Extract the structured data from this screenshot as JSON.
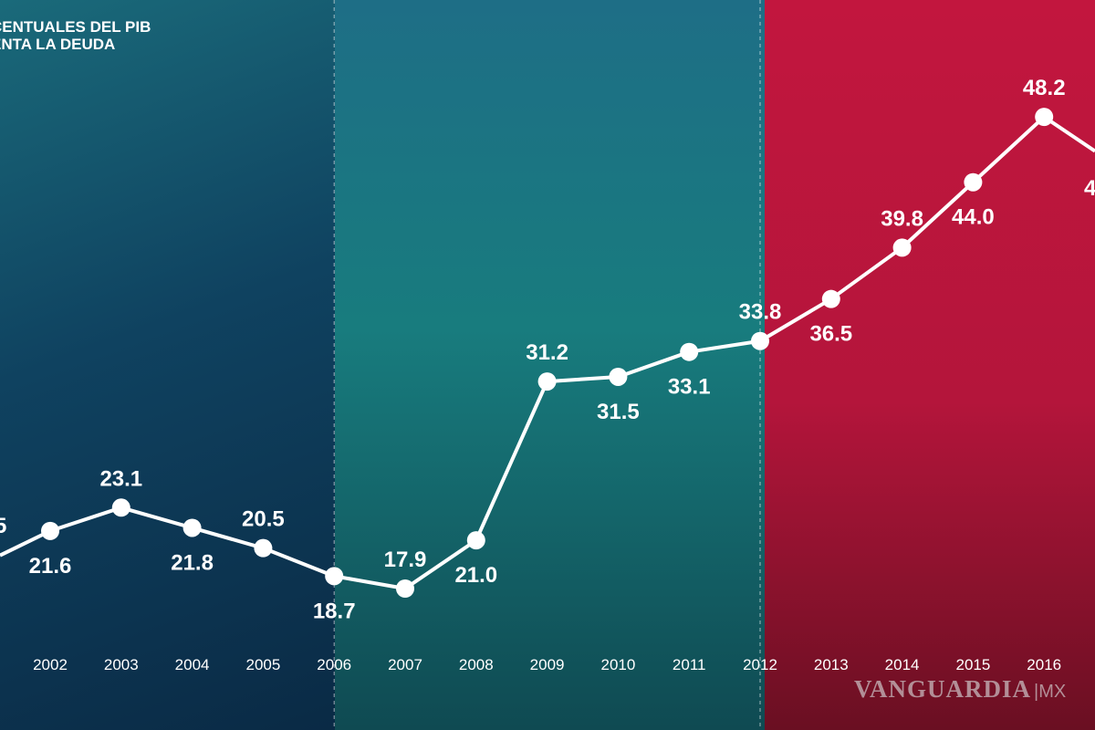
{
  "title_lines": [
    "CENTUALES DEL PIB",
    "ENTA LA DEUDA"
  ],
  "watermark": {
    "brand": "VANGUARDIA",
    "suffix": "|MX"
  },
  "colors": {
    "period_1": "#0f4260",
    "period_2": "#187c7e",
    "period_3": "#c2163e",
    "line": "#ffffff"
  },
  "chart_data": {
    "type": "line",
    "title": "",
    "xlabel": "",
    "ylabel": "",
    "x": [
      "2002",
      "2003",
      "2004",
      "2005",
      "2006",
      "2007",
      "2008",
      "2009",
      "2010",
      "2011",
      "2012",
      "2013",
      "2014",
      "2015",
      "2016"
    ],
    "series": [
      {
        "values": [
          21.6,
          23.1,
          21.8,
          20.5,
          18.7,
          17.9,
          21.0,
          31.2,
          31.5,
          33.1,
          33.8,
          36.5,
          39.8,
          44.0,
          48.2
        ]
      }
    ],
    "data_labels": [
      "21.6",
      "23.1",
      "21.8",
      "20.5",
      "18.7",
      "17.9",
      "21.0",
      "31.2",
      "31.5",
      "33.1",
      "33.8",
      "36.5",
      "39.8",
      "44.0",
      "48.2"
    ],
    "partial_labels": {
      "left": "5",
      "right": "4"
    },
    "period_dividers": [
      "2006",
      "2012"
    ],
    "grid": false,
    "legend": "none"
  }
}
